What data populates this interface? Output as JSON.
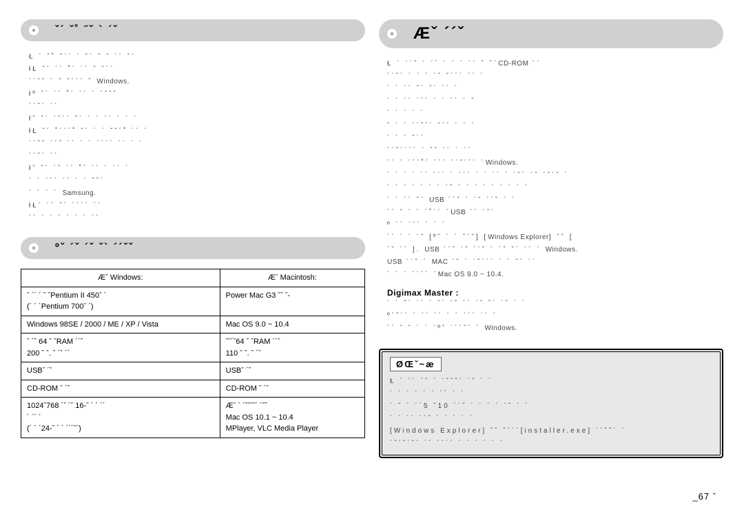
{
  "left": {
    "section1_title": "ˇ´ ˇ˚ ˝ˇ ` ´ˇ",
    "section1_body": "Ł ´ ˇ˚ ˇ´´ ´ ˇ´ ˇ ˇ ´´ ˇ´\nłŁ ˇ´ ´´ ˚´ ´´ ˇ ˇ´´\n´´ˇˇ ´ ˇ ˇ´´´ ˇ Windows.\nłº ˇ´ ´´ ˚´ ´´ ´ ´ˇˇˇ\n´´ˇ´ ´´\nłˇ ˇ´ ´ˇ´´ ˇ´ ´ ´ ´´ ´ ´ ´\nłŁ ˇ´ ˚´´´˚ ˇ´ ´ ´ ˇˇ´˚ ´´ ´\n´´ˇˇ ´´ˇ ´´ ´ ´ ´´´´ ´´ ´ ´\n´´ˇ´ ´´\nłˇ ˇ´ ´ˇ ´´ ˚´ ´´ ´ ´´ ´\n´ ´ ´´´ ´´ ´ ´ ˇˇ´\n´ ´ ´ ´ Samsung.\nłŁ´ ´´ ˇ´ ´´´´ ´´\n´´ ´ ´ ´ ´ ´ ´ ´´",
    "section2_title": "ºˇ ´ˇ ´ˇ ˇ` ´´ˇˇ",
    "table": {
      "col1_header": "Æˇ Windows:",
      "col2_header": "Æˇ Macintosh:",
      "rows": [
        [
          "ˇ ´´ ´ ˇ ˇPentium II 450ˇ ´\n(´ ´ ´Pentium 700ˇ ´)",
          "Power Mac G3 ˇˇ ˇ-"
        ],
        [
          "Windows 98SE / 2000 / ME / XP / Vista",
          "Mac OS 9.0 ~ 10.4"
        ],
        [
          "ˇ ´ˇ 64 ˇ ˇRAM ´´ˇ\n200 ˇ ˇ. ˇ ´ˇ ´´",
          "ˇˇ´ˇ64 ˇ ˇRAM ´´ˇ\n110 ˇ ˇ. ˇ ´ˇ"
        ],
        [
          "USBˇ ´ˇ",
          "USBˇ ´ˇ"
        ],
        [
          "CD-ROM ˇ ´ˇ",
          "CD-ROM ˇ ´ˇ"
        ],
        [
          "1024ˇ768 ´ˇ ´ˇ 16-ˇ ´ ´ ´´\n´ ´´ ´\n(´ ´ ´24-ˇ ´ ´ ´´´ˇ´)",
          "Æˇ ` ´ˇˇˇˇ´ ´ˇˇ\nMac OS 10.1 ~ 10.4\nMPlayer, VLC Media Player"
        ]
      ]
    }
  },
  "right": {
    "section_title": "Æˇ ´´ˇ",
    "body_part1": "Ł ´ ´´ˇ ´ ´´ ´ ´ ´ ´´ ˇ ˇ´CD-ROM ´´\n´´ˇ´ ´ ´ ´ ´ˇ ˇ´´´ ´´ ´\n´ ´ ´´ ˇ´ ˇ´ ´´ ´\n´ ´ ´´ ´´´ ´ ´ ´´ ´ ˇ\n´ ´ ´ ´ ´\nˇ ´ ´ ´´ˇ´´ ˇ´´ ´ ´ ´\n´ ´ ´ ˇ´´\n´´ˇ´´´´ ´ ˇˇ ´´ ´ ´´\n´´ ´ ´´´˚´ ´´´ ´´ˇ´´´ ´Windows.\n´ ´ ´ ´ ´´ ´´´ ´ ´´´ ´ ´ ´´ ´ ´ˇ´ ´ˇ ´ˇ´ˇ ´\n´ ´ ´ ´ ´ ´ ´ ´ˇ ´ ´ ´ ´ ´ ´ ´ ´ ´\n´ ´ ´´ ˇ` USB ´´ˇ ´ ´ˇ ´´ˇ ´ ´\n´´ ˇ ´ ´ ´˚´´ ´USB ´´ ´ˇ´\nº ´´ ´´´ ´ ´ ´\n´´ ´ ´ ´ˇ [ºˇ ´ ´ ˇ´ˇ] [Windows Explorer] ˇˇ [\n´ˇ ´´ ]. USB ´´ˇ ´ˇ ´´ˇ ´ ´ˇ ˇ´ ´´ ´ Windows.\nUSB ´´ˇ ´ MAC ´ˇ ´ ´ˇ´´´ ´ ´ ˇ´ ´´\n´ ´ ´ ´´´´ ´Mac OS 9.0 ~ 10.4.",
    "digimax_label": "Digimax Master :",
    "body_part2": "´ ´ ˇ´ ´´ ´ ˇ´ ´ˇ ´´ ´ˇ ˇ´ ´ˇ ´ ´\nº´ˇ´´ ´ ´´ ´´ ´ ´ ´´´ ´´ ´\n´´ ˇ ˇ ´ ´ ´ºˇ ´´´ˇ´ ´ Windows.",
    "note_title": "ØŒˇ~æ",
    "note_body": "Ł ´ ´´ ´ˇ ´ ´ˇˇˇ´ ´ˇ ´ ´\n´ ´ ´ ´ ´ ´ ´´ ´ ´\n´ ˇ ´ ´´5 ˇ10 ´´ˇ ´ ´ ´ ´ ´ˇ ´ ´\n´ ´ ´´ ´´ˇ ´ ´ ´ ´ ´\n[Windows Explorer] ˇˇ ˇ`´´[installer.exe] ´´ˇˇ´ ´\n´ˇ´ˇ´ˇ´ ´´ ´´´´ ´ ´ ´ ´ ´ ´"
  },
  "page_number": "_67 ˇ"
}
